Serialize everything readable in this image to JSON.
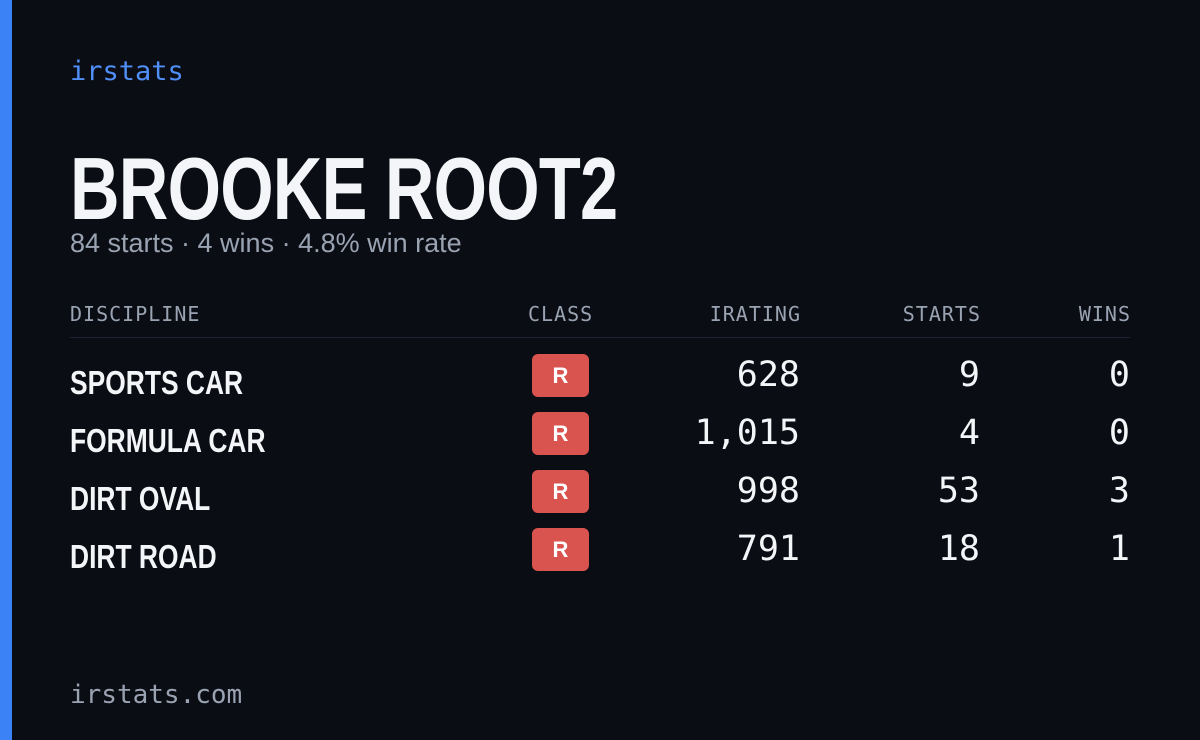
{
  "brand": "irstats",
  "title": "BROOKE ROOT2",
  "subtitle": "84 starts · 4 wins · 4.8% win rate",
  "table": {
    "headers": [
      "DISCIPLINE",
      "CLASS",
      "IRATING",
      "STARTS",
      "WINS"
    ],
    "rows": [
      [
        "SPORTS CAR",
        "R",
        "628",
        "9",
        "0"
      ],
      [
        "FORMULA CAR",
        "R",
        "1,015",
        "4",
        "0"
      ],
      [
        "DIRT OVAL",
        "R",
        "998",
        "53",
        "3"
      ],
      [
        "DIRT ROAD",
        "R",
        "791",
        "18",
        "1"
      ]
    ]
  },
  "footer": "irstats.com"
}
